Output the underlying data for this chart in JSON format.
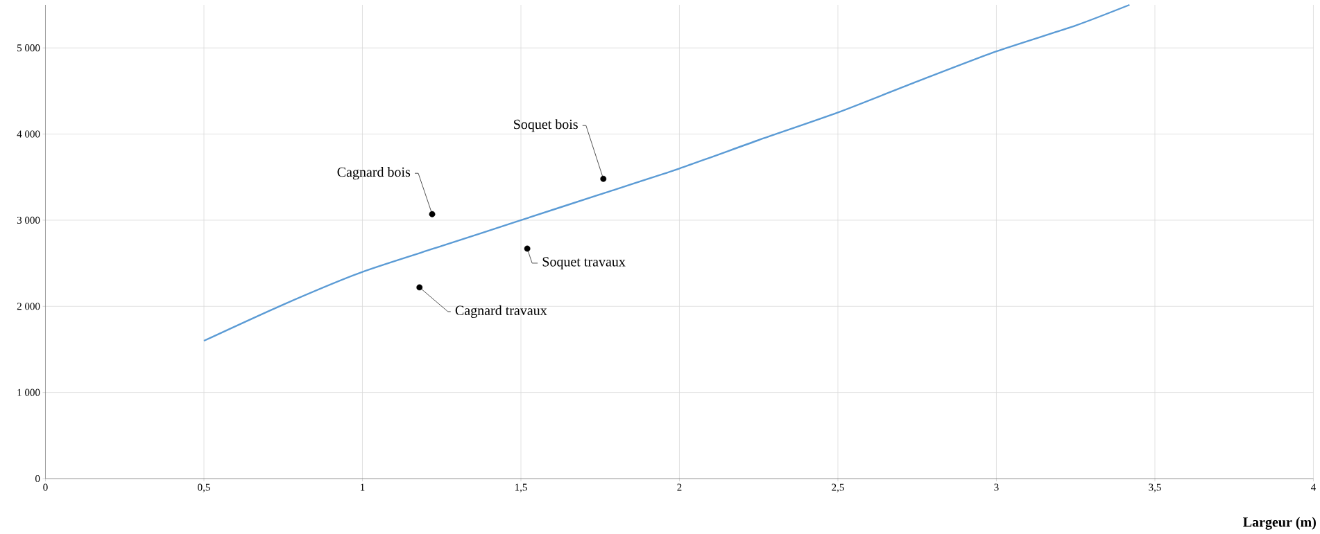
{
  "chart_data": {
    "type": "line",
    "xlabel": "Largeur (m)",
    "series": [
      {
        "color": "#5b9bd5",
        "marker": "none",
        "x": [
          0.5,
          0.75,
          1,
          1.25,
          1.5,
          1.75,
          2,
          2.25,
          2.5,
          2.75,
          3,
          3.25,
          3.42
        ],
        "values": [
          1600,
          2020,
          2400,
          2700,
          3000,
          3300,
          3600,
          3930,
          4250,
          4610,
          4960,
          5260,
          5500
        ]
      },
      {
        "type": "scatter",
        "color": "#000000",
        "marker": "circle",
        "x": [
          1.22,
          1.18,
          1.76,
          1.52
        ],
        "values": [
          3070,
          2220,
          3480,
          2670
        ]
      }
    ],
    "annotations": [
      {
        "text": "Cagnard bois",
        "x": 1.22,
        "y": 3070
      },
      {
        "text": "Cagnard travaux",
        "x": 1.18,
        "y": 2220
      },
      {
        "text": "Soquet bois",
        "x": 1.76,
        "y": 3480
      },
      {
        "text": "Soquet travaux",
        "x": 1.52,
        "y": 2670
      }
    ],
    "xlim": [
      0,
      4
    ],
    "ylim": [
      0,
      5500
    ],
    "xticks": [
      0,
      {
        "value": 0.5,
        "label": "0,5"
      },
      1,
      {
        "value": 1.5,
        "label": "1,5"
      },
      2,
      {
        "value": 2.5,
        "label": "2,5"
      },
      3,
      {
        "value": 3.5,
        "label": "3,5"
      },
      4
    ],
    "yticks": [
      0,
      {
        "value": 1000,
        "label": "1 000"
      },
      {
        "value": 2000,
        "label": "2 000"
      },
      {
        "value": 3000,
        "label": "3 000"
      },
      {
        "value": 4000,
        "label": "4 000"
      },
      {
        "value": 5000,
        "label": "5 000"
      }
    ],
    "grid": true
  }
}
